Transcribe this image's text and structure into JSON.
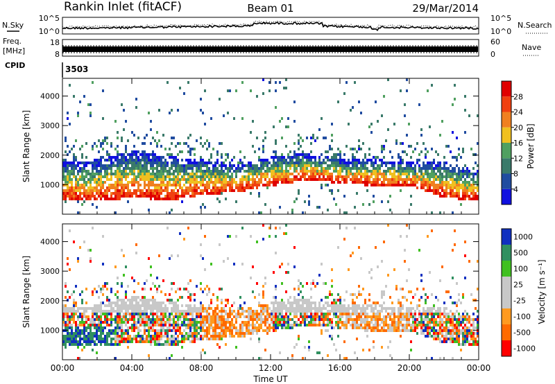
{
  "header": {
    "station": "Rankin Inlet (fitACF)",
    "beam": "Beam 01",
    "date": "29/Mar/2014"
  },
  "noise_panel": {
    "left_label": "N.Sky",
    "right_label": "N.Search",
    "left_ticks": [
      "10^5",
      "10^0"
    ],
    "right_ticks": [
      "10^5",
      "10^0"
    ]
  },
  "freq_panel": {
    "left_label_1": "Freq.",
    "left_label_2": "[MHz]",
    "right_label": "Nave",
    "left_ticks": [
      "18",
      "8"
    ],
    "right_ticks": [
      "60",
      "0"
    ]
  },
  "cpid_panel": {
    "label": "CPID",
    "value": "3503"
  },
  "colors": {
    "power_scale": [
      "#1010e0",
      "#204ca0",
      "#3a7a6a",
      "#50a060",
      "#f0c020",
      "#f08020",
      "#f04010",
      "#e00000"
    ],
    "velocity_scale": [
      "#ff0000",
      "#ff6a00",
      "#ff9a20",
      "#c8c8c8",
      "#c8c8c8",
      "#40c020",
      "#309060",
      "#1030c0"
    ]
  },
  "chart_data": [
    {
      "type": "heatmap",
      "name": "power",
      "ylabel": "Slant Range [km]",
      "yticks": [
        "1000",
        "2000",
        "3000",
        "4000"
      ],
      "ylim": [
        0,
        4600
      ],
      "xticks": [
        "00:00",
        "04:00",
        "08:00",
        "12:00",
        "16:00",
        "20:00",
        "00:00"
      ],
      "xlim_hours": [
        0,
        24
      ],
      "colorbar_label": "Power [dB]",
      "colorbar_ticks": [
        "4",
        "8",
        "12",
        "16",
        "20",
        "24",
        "28"
      ],
      "range_dB": [
        0,
        32
      ],
      "main_echo_band_km": [
        {
          "hour": 0,
          "low": 500,
          "high": 1800
        },
        {
          "hour": 2,
          "low": 500,
          "high": 1900
        },
        {
          "hour": 4,
          "low": 600,
          "high": 2200
        },
        {
          "hour": 6,
          "low": 500,
          "high": 2000
        },
        {
          "hour": 8,
          "low": 700,
          "high": 1900
        },
        {
          "hour": 10,
          "low": 800,
          "high": 1700
        },
        {
          "hour": 12,
          "low": 1000,
          "high": 2000
        },
        {
          "hour": 14,
          "low": 1200,
          "high": 2100
        },
        {
          "hour": 16,
          "low": 1100,
          "high": 1900
        },
        {
          "hour": 18,
          "low": 1000,
          "high": 1900
        },
        {
          "hour": 20,
          "low": 1000,
          "high": 1800
        },
        {
          "hour": 22,
          "low": 600,
          "high": 1800
        },
        {
          "hour": 24,
          "low": 500,
          "high": 1500
        }
      ]
    },
    {
      "type": "heatmap",
      "name": "velocity",
      "ylabel": "Slant Range [km]",
      "yticks": [
        "1000",
        "2000",
        "3000",
        "4000"
      ],
      "ylim": [
        0,
        4600
      ],
      "xticks": [
        "00:00",
        "04:00",
        "08:00",
        "12:00",
        "16:00",
        "20:00",
        "00:00"
      ],
      "xlabel": "Time UT",
      "xlim_hours": [
        0,
        24
      ],
      "colorbar_label": "Velocity [m s⁻¹]",
      "colorbar_ticks": [
        "1000",
        "500",
        "100",
        "25",
        "-25",
        "-100",
        "-500",
        "-1000"
      ]
    }
  ]
}
